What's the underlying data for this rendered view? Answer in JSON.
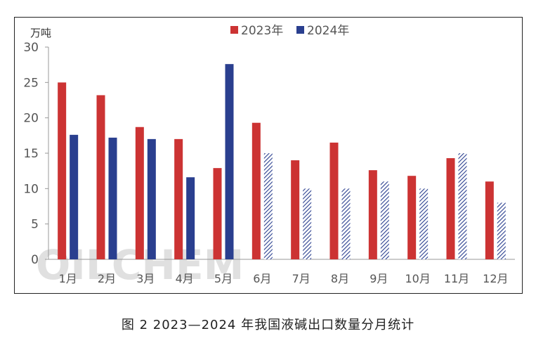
{
  "caption": "图 2 2023—2024 年我国液碱出口数量分月统计",
  "watermark": "OILCHEM",
  "chart_data": {
    "type": "bar",
    "unit": "万吨",
    "ylim": [
      0,
      30
    ],
    "yticks": [
      0,
      5,
      10,
      15,
      20,
      25,
      30
    ],
    "categories": [
      "1月",
      "2月",
      "3月",
      "4月",
      "5月",
      "6月",
      "7月",
      "8月",
      "9月",
      "10月",
      "11月",
      "12月"
    ],
    "legend_position": "top",
    "grid": false,
    "series": [
      {
        "name": "2023年",
        "color": "#cc3333",
        "values": [
          25.0,
          23.2,
          18.7,
          17.0,
          12.9,
          19.3,
          14.0,
          16.5,
          12.6,
          11.8,
          14.3,
          11.0
        ]
      },
      {
        "name": "2024年",
        "color": "#2a3f8f",
        "pattern_from_index": 5,
        "values": [
          17.6,
          17.2,
          17.0,
          11.6,
          27.6,
          15.0,
          10.0,
          10.0,
          11.0,
          10.0,
          15.0,
          8.0
        ]
      }
    ]
  }
}
